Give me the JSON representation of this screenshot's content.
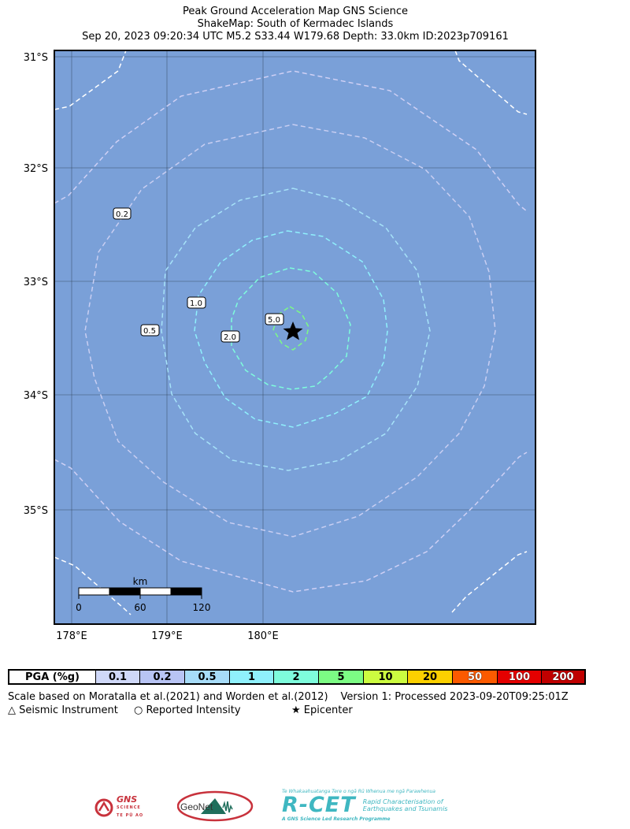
{
  "header": {
    "line1": "Peak Ground Acceleration Map GNS Science",
    "line2": "ShakeMap: South of Kermadec Islands",
    "line3": "Sep 20, 2023 09:20:34 UTC M5.2 S33.44 W179.68 Depth: 33.0km ID:2023p709161"
  },
  "map": {
    "background_color": "#7aa0d8",
    "lat_labels": [
      "31°S",
      "32°S",
      "33°S",
      "34°S",
      "35°S"
    ],
    "lon_labels": [
      "178°E",
      "179°E",
      "180°E"
    ],
    "contour_labels": [
      "0.2",
      "1.0",
      "0.5",
      "2.0",
      "5.0"
    ],
    "epicenter_icon": "star-icon",
    "scale_bar": {
      "unit": "km",
      "ticks": [
        "0",
        "60",
        "120"
      ]
    }
  },
  "legend": {
    "header": "PGA (%g)",
    "bins": [
      {
        "label": "0.1",
        "color": "#cfd8f8"
      },
      {
        "label": "0.2",
        "color": "#b8c4f4"
      },
      {
        "label": "0.5",
        "color": "#a7dcf8"
      },
      {
        "label": "1",
        "color": "#8ff0fc"
      },
      {
        "label": "2",
        "color": "#7efcdc"
      },
      {
        "label": "5",
        "color": "#7cfc84"
      },
      {
        "label": "10",
        "color": "#ccfc40"
      },
      {
        "label": "20",
        "color": "#fcd000"
      },
      {
        "label": "50",
        "color": "#fc5a00"
      },
      {
        "label": "100",
        "color": "#e40000"
      },
      {
        "label": "200",
        "color": "#c00000"
      }
    ]
  },
  "footer": {
    "scale_note": "Scale based on Moratalla et al.(2021) and Worden et al.(2012)",
    "version_note": "Version 1: Processed 2023-09-20T09:25:01Z",
    "key_instrument": "△  Seismic Instrument",
    "key_intensity": "○  Reported Intensity",
    "key_epicenter": "★ Epicenter"
  },
  "logos": {
    "gns_icon": "gns-science-logo",
    "gns_name": "GNS",
    "gns_sub": "SCIENCE",
    "gns_maori": "TE PŪ AO",
    "geonet_name": "GeoNet",
    "rcet_top": "Te Whakaahuatanga Tere o ngā Rū Whenua me ngā Parawhenua",
    "rcet_name": "R-CET",
    "rcet_side1": "Rapid Characterisation of",
    "rcet_side2": "Earthquakes and Tsunamis",
    "rcet_bottom": "A GNS Science Led Research Programme"
  }
}
